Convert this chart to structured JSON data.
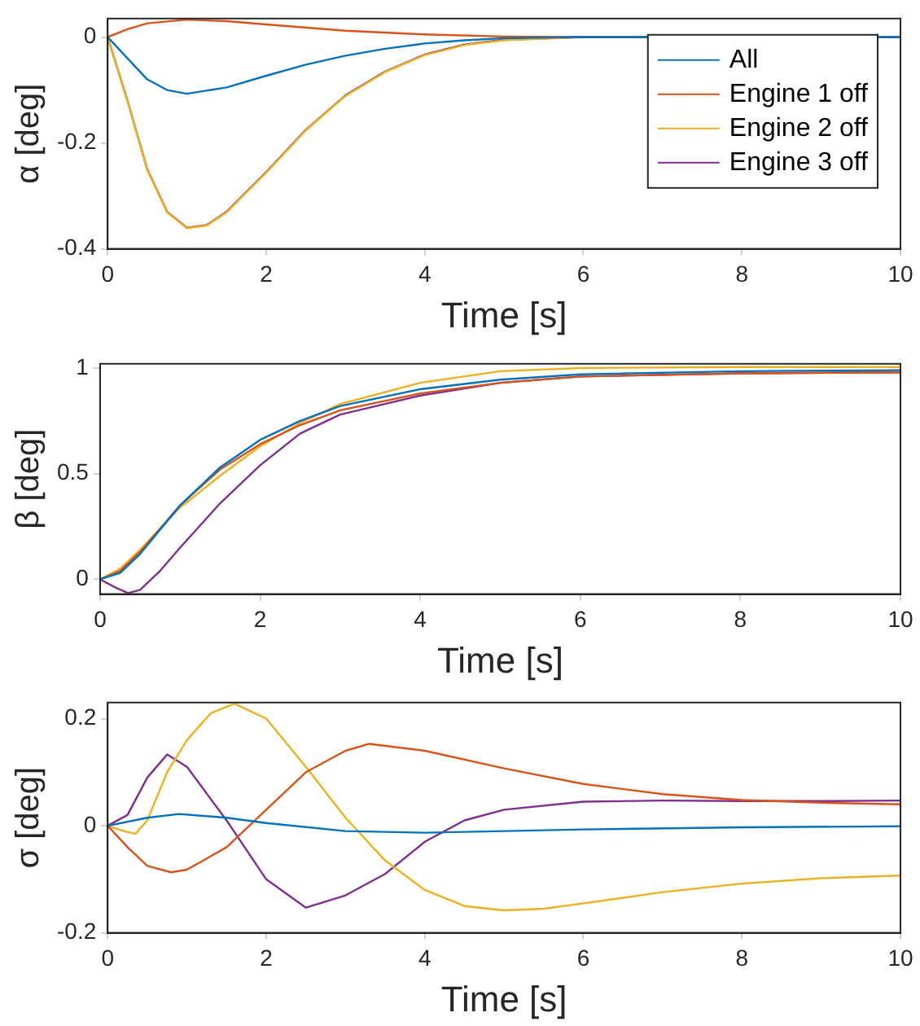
{
  "chart_data": [
    {
      "type": "line",
      "xlabel": "Time [s]",
      "ylabel": "α [deg]",
      "xlim": [
        0,
        10
      ],
      "xticks": [
        0,
        2,
        4,
        6,
        8,
        10
      ],
      "ylim": [
        -0.4,
        0.035
      ],
      "yticks": [
        -0.4,
        -0.2,
        0
      ],
      "grid": false,
      "legend": "top right",
      "tick_labels": "xy",
      "series": [
        {
          "name": "All",
          "color": "#0072bd",
          "x": [
            0,
            0.25,
            0.5,
            0.75,
            1,
            1.5,
            2,
            2.5,
            3,
            3.5,
            4,
            4.5,
            5,
            6,
            10
          ],
          "values": [
            0,
            -0.04,
            -0.08,
            -0.1,
            -0.107,
            -0.095,
            -0.073,
            -0.052,
            -0.035,
            -0.022,
            -0.012,
            -0.006,
            -0.002,
            0,
            0
          ]
        },
        {
          "name": "Engine 1 off",
          "color": "#d95319",
          "x": [
            0,
            0.25,
            0.5,
            1,
            1.5,
            2,
            3,
            4,
            5,
            6,
            10
          ],
          "values": [
            0,
            0.015,
            0.026,
            0.033,
            0.03,
            0.024,
            0.012,
            0.005,
            0.001,
            0,
            0
          ]
        },
        {
          "name": "Engine 2 off",
          "color": "#edb120",
          "x": [
            0,
            0.25,
            0.5,
            0.75,
            1,
            1.25,
            1.5,
            2,
            2.5,
            3,
            3.5,
            4,
            4.5,
            5,
            6,
            10
          ],
          "values": [
            0,
            -0.121,
            -0.251,
            -0.331,
            -0.361,
            -0.356,
            -0.331,
            -0.256,
            -0.176,
            -0.111,
            -0.066,
            -0.034,
            -0.015,
            -0.006,
            0,
            0
          ]
        },
        {
          "name": "Engine 3 off",
          "color": "#7e2f8e",
          "x": [
            0,
            0.25,
            0.5,
            0.75,
            1,
            1.25,
            1.5,
            2,
            2.5,
            3,
            3.5,
            4,
            4.5,
            5,
            6,
            10
          ],
          "values": [
            0,
            -0.12,
            -0.25,
            -0.33,
            -0.36,
            -0.355,
            -0.33,
            -0.255,
            -0.175,
            -0.11,
            -0.065,
            -0.033,
            -0.014,
            -0.005,
            0,
            0
          ]
        }
      ]
    },
    {
      "type": "line",
      "xlabel": "Time [s]",
      "ylabel": "β [deg]",
      "xlim": [
        0,
        10
      ],
      "xticks": [
        0,
        2,
        4,
        6,
        8,
        10
      ],
      "ylim": [
        -0.07,
        1.02
      ],
      "yticks": [
        0,
        0.5,
        1
      ],
      "grid": false,
      "series": [
        {
          "color": "#0072bd",
          "x": [
            0,
            0.25,
            0.5,
            1,
            1.5,
            2,
            2.5,
            3,
            4,
            5,
            6,
            8,
            10
          ],
          "values": [
            0,
            0.03,
            0.12,
            0.35,
            0.53,
            0.66,
            0.75,
            0.82,
            0.9,
            0.945,
            0.97,
            0.985,
            0.99
          ]
        },
        {
          "color": "#d95319",
          "x": [
            0,
            0.25,
            0.5,
            1,
            1.5,
            2,
            2.5,
            3,
            4,
            5,
            6,
            8,
            10
          ],
          "values": [
            0,
            0.04,
            0.13,
            0.35,
            0.52,
            0.64,
            0.73,
            0.8,
            0.88,
            0.93,
            0.96,
            0.975,
            0.98
          ]
        },
        {
          "color": "#edb120",
          "x": [
            0,
            0.25,
            0.5,
            1,
            1.5,
            2,
            2.5,
            3,
            4,
            5,
            6,
            8,
            10
          ],
          "values": [
            0,
            0.05,
            0.14,
            0.34,
            0.49,
            0.63,
            0.74,
            0.83,
            0.93,
            0.985,
            1.0,
            1.005,
            1.005
          ]
        },
        {
          "color": "#7e2f8e",
          "x": [
            0,
            0.2,
            0.35,
            0.5,
            0.75,
            1,
            1.5,
            2,
            2.5,
            3,
            4,
            5,
            6,
            8,
            10
          ],
          "values": [
            0,
            -0.04,
            -0.065,
            -0.05,
            0.04,
            0.15,
            0.36,
            0.54,
            0.69,
            0.78,
            0.87,
            0.93,
            0.96,
            0.975,
            0.98
          ]
        }
      ]
    },
    {
      "type": "line",
      "xlabel": "Time [s]",
      "ylabel": "σ [deg]",
      "xlim": [
        0,
        10
      ],
      "xticks": [
        0,
        2,
        4,
        6,
        8,
        10
      ],
      "ylim": [
        -0.2,
        0.23
      ],
      "yticks": [
        -0.2,
        0,
        0.2
      ],
      "grid": false,
      "series": [
        {
          "color": "#0072bd",
          "x": [
            0,
            0.5,
            0.9,
            1.5,
            2,
            3,
            4,
            5,
            6,
            8,
            10
          ],
          "values": [
            0,
            0.015,
            0.022,
            0.015,
            0.005,
            -0.01,
            -0.013,
            -0.01,
            -0.007,
            -0.003,
            -0.001
          ]
        },
        {
          "color": "#d95319",
          "x": [
            0,
            0.25,
            0.5,
            0.8,
            1,
            1.5,
            2,
            2.5,
            3,
            3.3,
            4,
            5,
            6,
            7,
            8,
            9,
            10
          ],
          "values": [
            0,
            -0.04,
            -0.075,
            -0.087,
            -0.082,
            -0.04,
            0.03,
            0.1,
            0.14,
            0.153,
            0.14,
            0.107,
            0.078,
            0.059,
            0.048,
            0.043,
            0.04
          ]
        },
        {
          "color": "#edb120",
          "x": [
            0,
            0.2,
            0.35,
            0.5,
            0.75,
            1,
            1.3,
            1.6,
            2,
            2.5,
            3,
            3.5,
            4,
            4.5,
            5,
            5.5,
            6,
            7,
            8,
            9,
            10
          ],
          "values": [
            0,
            -0.01,
            -0.015,
            0.01,
            0.1,
            0.16,
            0.21,
            0.228,
            0.2,
            0.11,
            0.015,
            -0.065,
            -0.12,
            -0.15,
            -0.158,
            -0.155,
            -0.145,
            -0.124,
            -0.108,
            -0.098,
            -0.093
          ]
        },
        {
          "color": "#7e2f8e",
          "x": [
            0,
            0.25,
            0.5,
            0.75,
            1,
            1.5,
            2,
            2.5,
            3,
            3.5,
            4,
            4.5,
            5,
            6,
            7,
            8,
            9,
            10
          ],
          "values": [
            0,
            0.02,
            0.09,
            0.133,
            0.11,
            0.01,
            -0.1,
            -0.153,
            -0.13,
            -0.09,
            -0.03,
            0.01,
            0.03,
            0.045,
            0.047,
            0.046,
            0.046,
            0.047
          ]
        }
      ]
    }
  ]
}
